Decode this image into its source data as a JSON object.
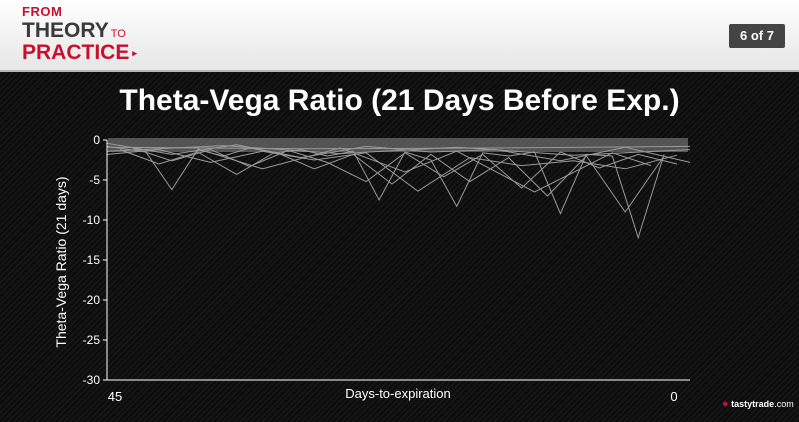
{
  "header": {
    "logo": {
      "line1": "FROM",
      "line2": "THEORY",
      "line2_small": "TO",
      "line3": "PRACTICE",
      "arrow": "▸"
    },
    "page_indicator": "6 of 7"
  },
  "brand": {
    "name": "tastytrade",
    "suffix": ".com",
    "icon": "cherry-icon"
  },
  "colors": {
    "accent": "#c8102e",
    "line": "#9a9a9a",
    "band": "#8c8c8c",
    "background": "#101010",
    "axis": "#ffffff"
  },
  "chart_data": {
    "type": "line",
    "title": "Theta-Vega Ratio (21 Days Before Exp.)",
    "xlabel": "Days-to-expiration",
    "ylabel": "Theta-Vega Ratio (21 days)",
    "xlim": [
      45,
      0
    ],
    "ylim": [
      -30,
      0
    ],
    "x_ticks": [
      45,
      0
    ],
    "y_ticks": [
      0,
      -5,
      -10,
      -15,
      -20,
      -25,
      -30
    ],
    "grid": false,
    "series": [
      {
        "x": [
          45,
          42,
          40,
          38,
          36,
          34,
          32,
          30,
          28,
          26,
          24,
          22,
          20,
          18,
          16,
          14,
          12,
          10,
          8,
          6,
          4,
          2
        ],
        "values": [
          -0.8,
          -1.5,
          -6.2,
          -1.2,
          -2.0,
          -1.0,
          -1.6,
          -1.2,
          -2.0,
          -1.4,
          -7.5,
          -1.5,
          -2.5,
          -8.3,
          -1.6,
          -2.0,
          -1.5,
          -9.2,
          -1.8,
          -2.0,
          -12.2,
          -1.8
        ]
      },
      {
        "x": [
          44,
          41,
          38,
          35,
          32,
          29,
          26,
          23,
          20,
          17,
          14,
          11,
          8,
          5,
          2
        ],
        "values": [
          -1.2,
          -3.0,
          -1.5,
          -4.3,
          -1.5,
          -3.6,
          -1.8,
          -5.5,
          -1.8,
          -5.2,
          -2.2,
          -7.0,
          -2.0,
          -9.0,
          -2.0
        ]
      },
      {
        "x": [
          43,
          40,
          37,
          34,
          31,
          28,
          25,
          22,
          19,
          16,
          13,
          10,
          7,
          4,
          1
        ],
        "values": [
          -1.0,
          -2.6,
          -1.2,
          -3.3,
          -1.3,
          -2.8,
          -5.2,
          -1.6,
          -4.6,
          -1.8,
          -6.0,
          -1.5,
          -3.5,
          -1.8,
          -3.0
        ]
      },
      {
        "x": [
          45,
          41,
          37,
          33,
          29,
          25,
          21,
          17,
          13,
          9,
          5,
          1
        ],
        "values": [
          -1.8,
          -1.2,
          -2.8,
          -1.4,
          -2.5,
          -1.6,
          -6.4,
          -2.2,
          -3.2,
          -2.6,
          -3.6,
          -1.9
        ]
      },
      {
        "x": [
          45,
          30,
          15,
          0
        ],
        "values": [
          -0.9,
          -1.1,
          -1.0,
          -0.8
        ]
      },
      {
        "x": [
          45,
          40,
          35,
          30,
          25,
          20,
          15,
          10,
          5,
          0
        ],
        "values": [
          -0.4,
          -1.8,
          -0.6,
          -2.2,
          -0.8,
          -1.5,
          -1.2,
          -2.6,
          -0.9,
          -2.8
        ]
      },
      {
        "x": [
          38,
          33,
          27,
          22,
          18,
          12,
          6,
          3
        ],
        "values": [
          -1.1,
          -3.6,
          -1.0,
          -4.0,
          -1.4,
          -6.5,
          -1.6,
          -3.2
        ]
      },
      {
        "x": [
          45,
          36,
          27,
          18,
          9,
          0
        ],
        "values": [
          -1.4,
          -0.7,
          -1.7,
          -0.9,
          -1.9,
          -1.2
        ]
      }
    ]
  }
}
